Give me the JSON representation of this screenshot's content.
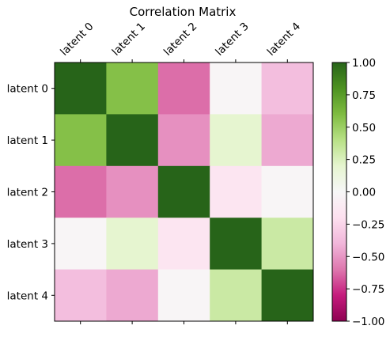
{
  "chart_data": [
    {
      "type": "heatmap",
      "title": "Correlation Matrix",
      "x_labels": [
        "latent 0",
        "latent 1",
        "latent 2",
        "latent 3",
        "latent 4"
      ],
      "y_labels": [
        "latent 0",
        "latent 1",
        "latent 2",
        "latent 3",
        "latent 4"
      ],
      "values": [
        [
          1.0,
          0.58,
          -0.62,
          -0.02,
          -0.36
        ],
        [
          0.58,
          1.0,
          -0.52,
          0.2,
          -0.44
        ],
        [
          -0.62,
          -0.52,
          1.0,
          -0.16,
          -0.02
        ],
        [
          -0.02,
          0.2,
          -0.16,
          1.0,
          0.32
        ],
        [
          -0.36,
          -0.44,
          -0.02,
          0.32,
          1.0
        ]
      ],
      "colormap": "PiYG",
      "vmin": -1.0,
      "vmax": 1.0,
      "colorbar": {
        "ticks": [
          1.0,
          0.75,
          0.5,
          0.25,
          0.0,
          -0.25,
          -0.5,
          -0.75,
          -1.0
        ],
        "tick_labels": [
          "1.00",
          "0.75",
          "0.50",
          "0.25",
          "0.00",
          "−0.25",
          "−0.50",
          "−0.75",
          "−1.00"
        ],
        "position": "right"
      },
      "colors": {
        "min": "#8e0152",
        "max": "#276419",
        "mid": "#f7f7f7"
      }
    }
  ]
}
